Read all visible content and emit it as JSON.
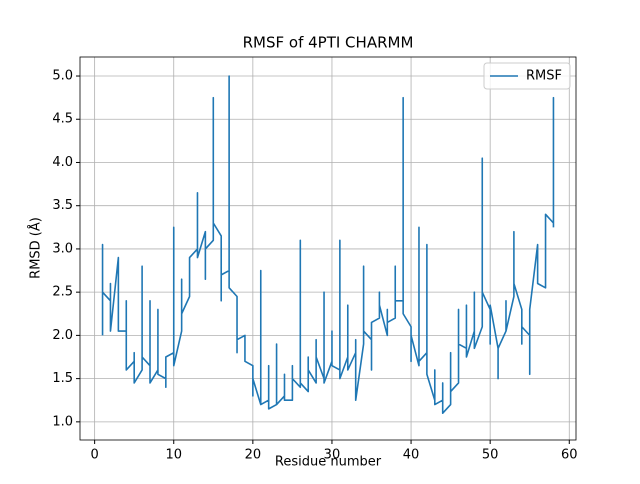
{
  "chart_data": {
    "type": "line",
    "title": "RMSF of 4PTI CHARMM",
    "x_label": "Residue number",
    "y_label": "RMSD (Å)",
    "x": [
      1,
      1,
      1,
      2,
      2,
      2,
      3,
      3,
      4,
      4,
      4,
      5,
      5,
      5,
      6,
      6,
      6,
      7,
      7,
      7,
      8,
      8,
      8,
      9,
      9,
      9,
      10,
      10,
      10,
      11,
      11,
      11,
      12,
      12,
      13,
      13,
      13,
      14,
      14,
      14,
      15,
      15,
      15,
      16,
      16,
      16,
      17,
      17,
      17,
      18,
      18,
      18,
      19,
      19,
      19,
      20,
      20,
      20,
      21,
      21,
      21,
      22,
      22,
      22,
      23,
      23,
      23,
      24,
      24,
      24,
      25,
      25,
      25,
      26,
      26,
      26,
      27,
      27,
      27,
      28,
      28,
      28,
      29,
      29,
      29,
      30,
      30,
      30,
      31,
      31,
      31,
      32,
      32,
      32,
      33,
      33,
      33,
      34,
      34,
      34,
      35,
      35,
      35,
      36,
      36,
      36,
      37,
      37,
      37,
      38,
      38,
      38,
      39,
      39,
      39,
      40,
      40,
      40,
      41,
      41,
      41,
      42,
      42,
      42,
      43,
      43,
      43,
      44,
      44,
      44,
      45,
      45,
      45,
      46,
      46,
      46,
      47,
      47,
      47,
      48,
      48,
      48,
      49,
      49,
      49,
      50,
      50,
      50,
      51,
      51,
      51,
      52,
      52,
      52,
      53,
      53,
      53,
      54,
      54,
      54,
      55,
      55,
      55,
      56,
      56,
      57,
      57,
      58,
      58,
      58
    ],
    "series": [
      {
        "name": "RMSF",
        "color": "#1f77b4",
        "values": [
          2.0,
          3.05,
          2.5,
          2.4,
          2.6,
          2.05,
          2.9,
          2.05,
          2.05,
          2.4,
          1.6,
          1.7,
          1.8,
          1.45,
          1.6,
          2.8,
          1.75,
          1.65,
          2.4,
          1.45,
          1.6,
          2.3,
          1.55,
          1.5,
          1.4,
          1.75,
          1.8,
          3.25,
          1.65,
          2.05,
          2.65,
          2.25,
          2.45,
          2.9,
          3.0,
          3.65,
          2.9,
          3.2,
          2.65,
          3.0,
          3.1,
          4.75,
          3.3,
          3.15,
          2.4,
          2.7,
          2.75,
          5.0,
          2.55,
          2.45,
          1.8,
          1.95,
          2.0,
          1.75,
          1.7,
          1.65,
          1.3,
          1.5,
          1.2,
          2.75,
          1.2,
          1.25,
          1.65,
          1.15,
          1.2,
          1.9,
          1.2,
          1.3,
          1.55,
          1.25,
          1.25,
          1.65,
          1.5,
          1.4,
          3.1,
          1.45,
          1.35,
          1.75,
          1.6,
          1.45,
          1.95,
          1.75,
          1.5,
          2.5,
          1.45,
          1.7,
          2.05,
          1.65,
          1.6,
          3.1,
          1.5,
          1.75,
          2.35,
          1.6,
          1.8,
          1.95,
          1.25,
          1.9,
          2.8,
          2.05,
          1.95,
          1.6,
          2.15,
          2.2,
          2.5,
          2.35,
          2.0,
          2.3,
          2.15,
          2.2,
          2.8,
          2.4,
          2.4,
          4.75,
          2.25,
          2.1,
          1.7,
          2.0,
          1.65,
          3.25,
          1.7,
          1.8,
          3.05,
          1.55,
          1.25,
          1.6,
          1.2,
          1.25,
          1.45,
          1.1,
          1.2,
          1.8,
          1.35,
          1.45,
          2.3,
          1.9,
          1.85,
          2.35,
          1.75,
          2.05,
          2.5,
          1.85,
          2.1,
          4.05,
          2.5,
          2.3,
          1.9,
          2.35,
          1.85,
          1.5,
          1.85,
          2.05,
          2.4,
          2.05,
          2.45,
          3.2,
          2.6,
          2.3,
          1.9,
          2.1,
          2.0,
          1.55,
          2.3,
          3.05,
          2.6,
          2.55,
          3.4,
          3.3,
          4.75,
          3.25
        ]
      }
    ],
    "xlim": [
      -1.85,
      60.85
    ],
    "xticks": [
      0,
      10,
      20,
      30,
      40,
      50,
      60
    ],
    "ylim": [
      0.79,
      5.22
    ],
    "yticks": [
      {
        "value": 1,
        "label": "1.0"
      },
      1.5,
      {
        "value": 2,
        "label": "2.0"
      },
      2.5,
      {
        "value": 3,
        "label": "3.0"
      },
      3.5,
      {
        "value": 4,
        "label": "4.0"
      },
      4.5,
      {
        "value": 5,
        "label": "5.0"
      }
    ],
    "grid": true,
    "legend": "upper right"
  }
}
